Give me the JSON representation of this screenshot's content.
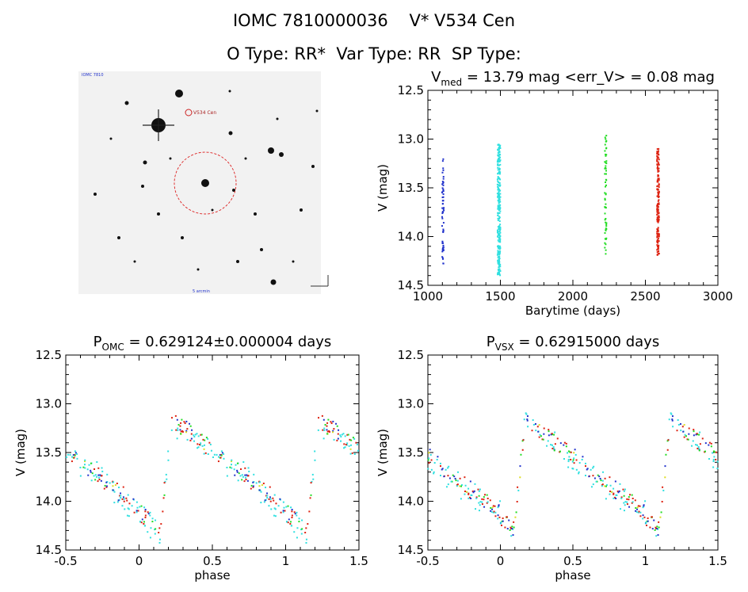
{
  "header": {
    "line1": "IOMC 7810000036    V* V534 Cen",
    "line2": "O Type: RR*  Var Type: RR  SP Type:"
  },
  "image_panel": {
    "top_left_label": "IOMC 7810",
    "object_label": "V534 Cen",
    "bottom_label": "5 arcmin"
  },
  "chart_data": [
    {
      "type": "scatter",
      "title": "V_med = 13.79 mag <err_V> = 0.08 mag",
      "title_parts": [
        "V",
        "med",
        " = 13.79 mag <err_V> = 0.08 mag"
      ],
      "xlabel": "Barytime (days)",
      "ylabel": "V (mag)",
      "xlim": [
        1000,
        3000
      ],
      "ylim": [
        14.5,
        12.5
      ],
      "xticks": [
        1000,
        1500,
        2000,
        2500,
        3000
      ],
      "yticks": [
        12.5,
        13.0,
        13.5,
        14.0,
        14.5
      ],
      "series": [
        {
          "color": "#2233cc",
          "x_range": [
            1098,
            1110
          ],
          "y_range": [
            13.2,
            14.28
          ],
          "count": 60
        },
        {
          "color": "#30e0e0",
          "x_range": [
            1480,
            1500
          ],
          "y_range": [
            13.05,
            14.4
          ],
          "count": 260
        },
        {
          "color": "#22dd22",
          "x_range": [
            2220,
            2232
          ],
          "y_range": [
            12.95,
            14.22
          ],
          "count": 60
        },
        {
          "color": "#dd2211",
          "x_range": [
            2580,
            2595
          ],
          "y_range": [
            13.1,
            14.22
          ],
          "count": 150
        }
      ]
    },
    {
      "type": "scatter",
      "title": "P_OMC = 0.629124±0.000004 days",
      "title_parts": [
        "P",
        "OMC",
        " = 0.629124±0.000004 days"
      ],
      "xlabel": "phase",
      "ylabel": "V (mag)",
      "xlim": [
        -0.5,
        1.5
      ],
      "ylim": [
        14.5,
        12.5
      ],
      "xticks": [
        -0.5,
        0.0,
        0.5,
        1.0,
        1.5
      ],
      "yticks": [
        12.5,
        13.0,
        13.5,
        14.0,
        14.5
      ],
      "max_phase": 0.22,
      "series_colors": [
        "#2233cc",
        "#30e0e0",
        "#22dd22",
        "#dd2211",
        "#dddd22"
      ]
    },
    {
      "type": "scatter",
      "title": "P_VSX = 0.62915000 days",
      "title_parts": [
        "P",
        "VSX",
        " = 0.62915000 days"
      ],
      "xlabel": "phase",
      "ylabel": "V (mag)",
      "xlim": [
        -0.5,
        1.5
      ],
      "ylim": [
        14.5,
        12.5
      ],
      "xticks": [
        -0.5,
        0.0,
        0.5,
        1.0,
        1.5
      ],
      "yticks": [
        12.5,
        13.0,
        13.5,
        14.0,
        14.5
      ],
      "max_phase": 0.17,
      "series_colors": [
        "#2233cc",
        "#30e0e0",
        "#22dd22",
        "#dd2211",
        "#dddd22"
      ]
    }
  ]
}
